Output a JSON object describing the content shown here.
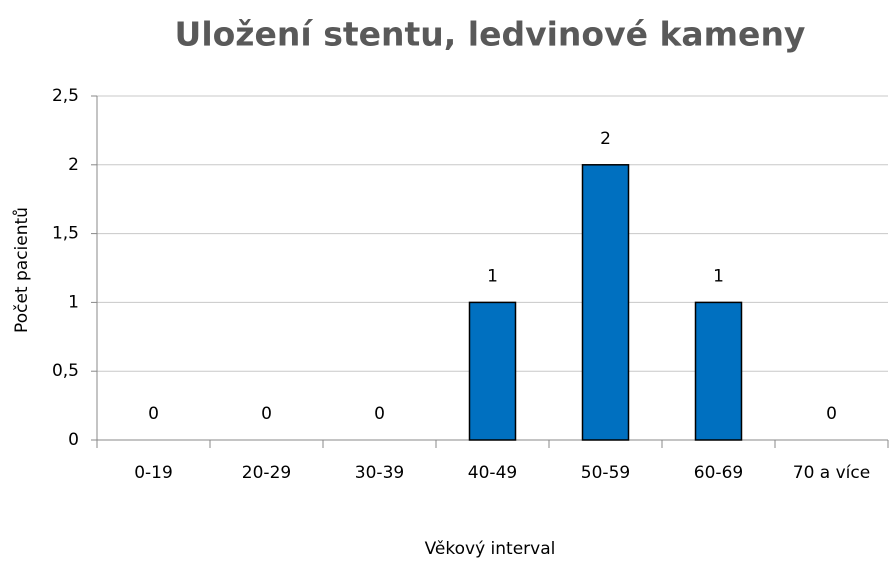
{
  "chart_data": {
    "type": "bar",
    "title": "Uložení stentu, ledvinové kameny",
    "xlabel": "Věkový interval",
    "ylabel": "Počet pacientů",
    "categories": [
      "0-19",
      "20-29",
      "30-39",
      "40-49",
      "50-59",
      "60-69",
      "70 a více"
    ],
    "values": [
      0,
      0,
      0,
      1,
      2,
      1,
      0
    ],
    "color": "#0070c0",
    "ylim": [
      0,
      2.5
    ],
    "yticks": [
      0,
      {
        "value": 0.5,
        "label": "0,5"
      },
      1,
      {
        "value": 1.5,
        "label": "1,5"
      },
      2,
      {
        "value": 2.5,
        "label": "2,5"
      }
    ],
    "grid": true
  }
}
